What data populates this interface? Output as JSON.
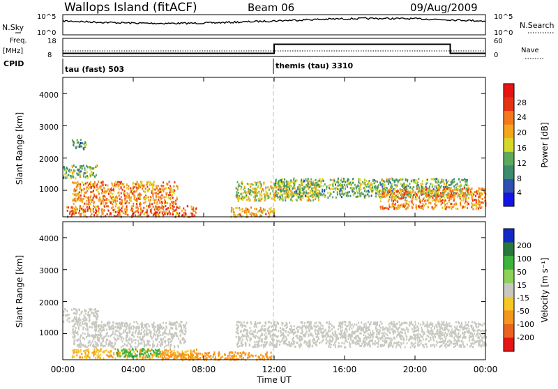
{
  "header": {
    "station": "Wallops Island (fitACF)",
    "beam": "Beam 06",
    "date": "09/Aug/2009"
  },
  "noise_panel": {
    "left_label": "N.Sky",
    "right_label": "N.Search",
    "left_ticks": [
      "10^5",
      "10^0"
    ],
    "right_ticks": [
      "10^5",
      "10^0"
    ]
  },
  "freq_panel": {
    "left_label_1": "Freq.",
    "left_label_2": "[MHz]",
    "right_label": "Nave",
    "left_ticks": [
      "18",
      "8"
    ],
    "right_ticks": [
      "60",
      "0"
    ]
  },
  "cpid": {
    "label": "CPID",
    "segments": [
      {
        "name": "tau (fast) 503",
        "start_hour": 0
      },
      {
        "name": "themis (tau) 3310",
        "start_hour": 12
      }
    ]
  },
  "power_panel": {
    "ylabel": "Slant Range [km]",
    "yticks": [
      "1000",
      "2000",
      "3000",
      "4000"
    ],
    "colorbar_label": "Power [dB]",
    "colorbar_ticks": [
      "4",
      "8",
      "12",
      "16",
      "20",
      "24",
      "28"
    ],
    "colors": [
      "#1414e6",
      "#2f4fb4",
      "#3c8c6e",
      "#5faa5a",
      "#d7d728",
      "#f5a51e",
      "#f5781e",
      "#e63214",
      "#e61414"
    ]
  },
  "velocity_panel": {
    "ylabel": "Slant Range [km]",
    "yticks": [
      "1000",
      "2000",
      "3000",
      "4000"
    ],
    "colorbar_label": "Velocity [m s⁻¹]",
    "colorbar_ticks": [
      "200",
      "100",
      "50",
      "15",
      "-15",
      "-50",
      "-100",
      "-200"
    ],
    "colors": [
      "#1428c8",
      "#28783c",
      "#3cb43c",
      "#8cd25a",
      "#c8c8c0",
      "#f5c828",
      "#f5961e",
      "#eb641e",
      "#e61414"
    ]
  },
  "xaxis": {
    "label": "Time UT",
    "ticks": [
      "00:00",
      "04:00",
      "08:00",
      "12:00",
      "16:00",
      "20:00",
      "00:00"
    ]
  },
  "chart_data": {
    "type": "heatmap",
    "title": "Wallops Island (fitACF) Beam 06 09/Aug/2009",
    "xlabel": "Time UT",
    "ylabel": "Slant Range [km]",
    "xlim_hours": [
      0,
      24
    ],
    "ylim_km": [
      180,
      4500
    ],
    "frequency_mhz": [
      {
        "from_hour": 0,
        "to_hour": 12,
        "value": 10.5
      },
      {
        "from_hour": 12,
        "to_hour": 22,
        "value": 15.5
      },
      {
        "from_hour": 22,
        "to_hour": 24,
        "value": 10.5
      }
    ],
    "power_scatter_regions": [
      {
        "t0": 0.2,
        "t1": 7.6,
        "r0": 200,
        "r1": 550,
        "db": 26
      },
      {
        "t0": 0.5,
        "t1": 6.5,
        "r0": 600,
        "r1": 1300,
        "db": 24
      },
      {
        "t0": 0.0,
        "t1": 2.0,
        "r0": 1400,
        "r1": 1800,
        "db": 14
      },
      {
        "t0": 0.5,
        "t1": 1.3,
        "r0": 2300,
        "r1": 2600,
        "db": 10
      },
      {
        "t0": 9.5,
        "t1": 12.0,
        "r0": 200,
        "r1": 500,
        "db": 22
      },
      {
        "t0": 9.8,
        "t1": 14.5,
        "r0": 700,
        "r1": 1300,
        "db": 18
      },
      {
        "t0": 12.0,
        "t1": 23.0,
        "r0": 800,
        "r1": 1400,
        "db": 14
      },
      {
        "t0": 18.0,
        "t1": 24.0,
        "r0": 450,
        "r1": 1100,
        "db": 24
      }
    ],
    "velocity_scatter_regions": [
      {
        "t0": 0.5,
        "t1": 7.6,
        "r0": 250,
        "r1": 550,
        "v": -30
      },
      {
        "t0": 3.0,
        "t1": 5.5,
        "r0": 300,
        "r1": 550,
        "v": 60
      },
      {
        "t0": 5.5,
        "t1": 12.0,
        "r0": 200,
        "r1": 450,
        "v": -60
      },
      {
        "t0": 0.5,
        "t1": 7.0,
        "r0": 600,
        "r1": 1400,
        "v": 0
      },
      {
        "t0": 0.0,
        "t1": 2.0,
        "r0": 1400,
        "r1": 1800,
        "v": 0
      },
      {
        "t0": 9.8,
        "t1": 24.0,
        "r0": 600,
        "r1": 1400,
        "v": 0
      }
    ]
  }
}
